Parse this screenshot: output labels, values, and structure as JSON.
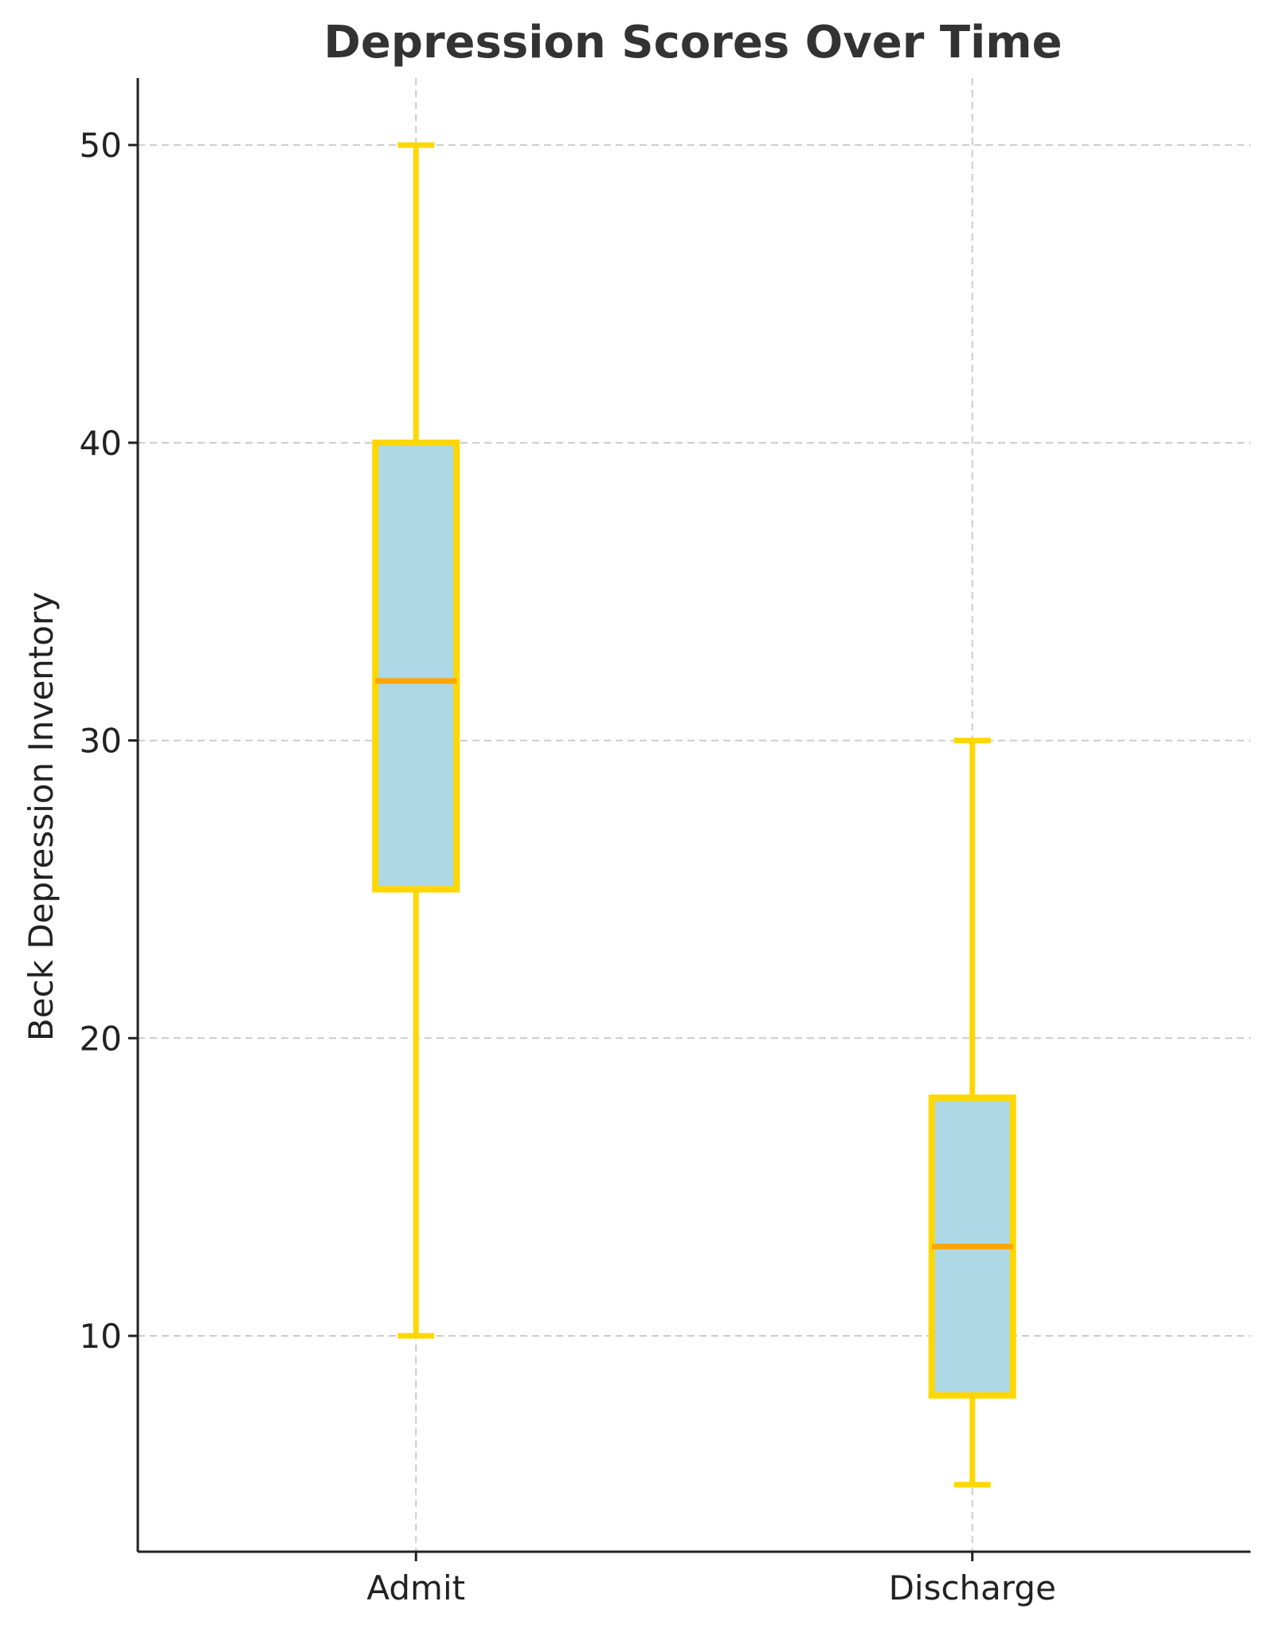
{
  "chart_data": {
    "type": "box",
    "title": "Depression Scores Over Time",
    "xlabel": "",
    "ylabel": "Beck Depression Inventory",
    "categories": [
      "Admit",
      "Discharge"
    ],
    "boxes": [
      {
        "category": "Admit",
        "whisker_low": 10,
        "q1": 25,
        "median": 32,
        "q3": 40,
        "whisker_high": 50
      },
      {
        "category": "Discharge",
        "whisker_low": 5,
        "q1": 8,
        "median": 13,
        "q3": 18,
        "whisker_high": 30
      }
    ],
    "yticks": [
      10,
      20,
      30,
      40,
      50
    ],
    "ylim": [
      2.75,
      52.25
    ],
    "grid": true,
    "colors": {
      "box_fill": "#add8e6",
      "box_edge": "#ffd700",
      "median": "#ffa500"
    }
  }
}
